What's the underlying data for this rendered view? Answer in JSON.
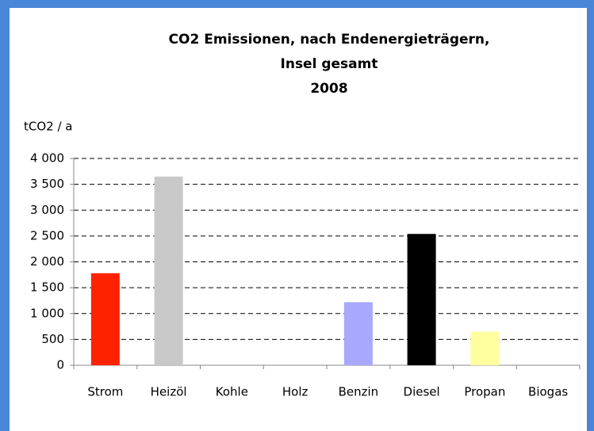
{
  "chart_data": {
    "type": "bar",
    "title_lines": [
      "CO2 Emissionen, nach Endenergieträgern,",
      "Insel gesamt",
      "2008"
    ],
    "y_label": "tCO2 / a",
    "categories": [
      "Strom",
      "Heizöl",
      "Kohle",
      "Holz",
      "Benzin",
      "Diesel",
      "Propan",
      "Biogas"
    ],
    "values": [
      1780,
      3650,
      0,
      0,
      1220,
      2540,
      650,
      0
    ],
    "colors": [
      "#ff2200",
      "#c8c8c8",
      "#888888",
      "#8b5a2b",
      "#a8a8ff",
      "#000000",
      "#ffffa0",
      "#44aa44"
    ],
    "ylim": [
      0,
      4000
    ],
    "yticks": [
      0,
      500,
      {
        "value": 1000,
        "label": "1 000"
      },
      {
        "value": 1500,
        "label": "1 500"
      },
      {
        "value": 2000,
        "label": "2 000"
      },
      {
        "value": 2500,
        "label": "2 500"
      },
      {
        "value": 3000,
        "label": "3 000"
      },
      {
        "value": 3500,
        "label": "3 500"
      },
      {
        "value": 4000,
        "label": "4 000"
      }
    ],
    "grid": true
  }
}
